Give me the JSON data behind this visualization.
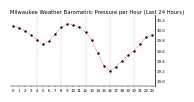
{
  "title": "Milwaukee Weather Barometric Pressure per Hour (Last 24 Hours)",
  "hours": [
    0,
    1,
    2,
    3,
    4,
    5,
    6,
    7,
    8,
    9,
    10,
    11,
    12,
    13,
    14,
    15,
    16,
    17,
    18,
    19,
    20,
    21,
    22,
    23
  ],
  "pressure": [
    30.08,
    30.04,
    29.98,
    29.9,
    29.8,
    29.72,
    29.78,
    29.92,
    30.05,
    30.12,
    30.1,
    30.05,
    29.95,
    29.8,
    29.55,
    29.3,
    29.2,
    29.28,
    29.38,
    29.5,
    29.58,
    29.72,
    29.85,
    29.9
  ],
  "ytick_labels": [
    "30.2",
    "30.0",
    "29.8",
    "29.6",
    "29.4",
    "29.2",
    "29.0"
  ],
  "ytick_values": [
    30.2,
    30.0,
    29.8,
    29.6,
    29.4,
    29.2,
    29.0
  ],
  "ylim": [
    28.9,
    30.3
  ],
  "xlim": [
    -0.5,
    23.5
  ],
  "line_color": "#ff0000",
  "marker_color": "#000000",
  "bg_color": "#ffffff",
  "grid_color": "#888888",
  "title_fontsize": 3.8,
  "tick_fontsize": 2.8,
  "vgrid_positions": [
    4,
    8,
    12,
    16,
    20
  ],
  "xtick_positions": [
    0,
    1,
    2,
    3,
    4,
    5,
    6,
    7,
    8,
    9,
    10,
    11,
    12,
    13,
    14,
    15,
    16,
    17,
    18,
    19,
    20,
    21,
    22,
    23
  ],
  "xtick_labels": [
    "0",
    "1",
    "2",
    "3",
    "4",
    "5",
    "6",
    "7",
    "8",
    "9",
    "10",
    "11",
    "12",
    "13",
    "14",
    "15",
    "16",
    "17",
    "18",
    "19",
    "20",
    "21",
    "22",
    "23"
  ]
}
